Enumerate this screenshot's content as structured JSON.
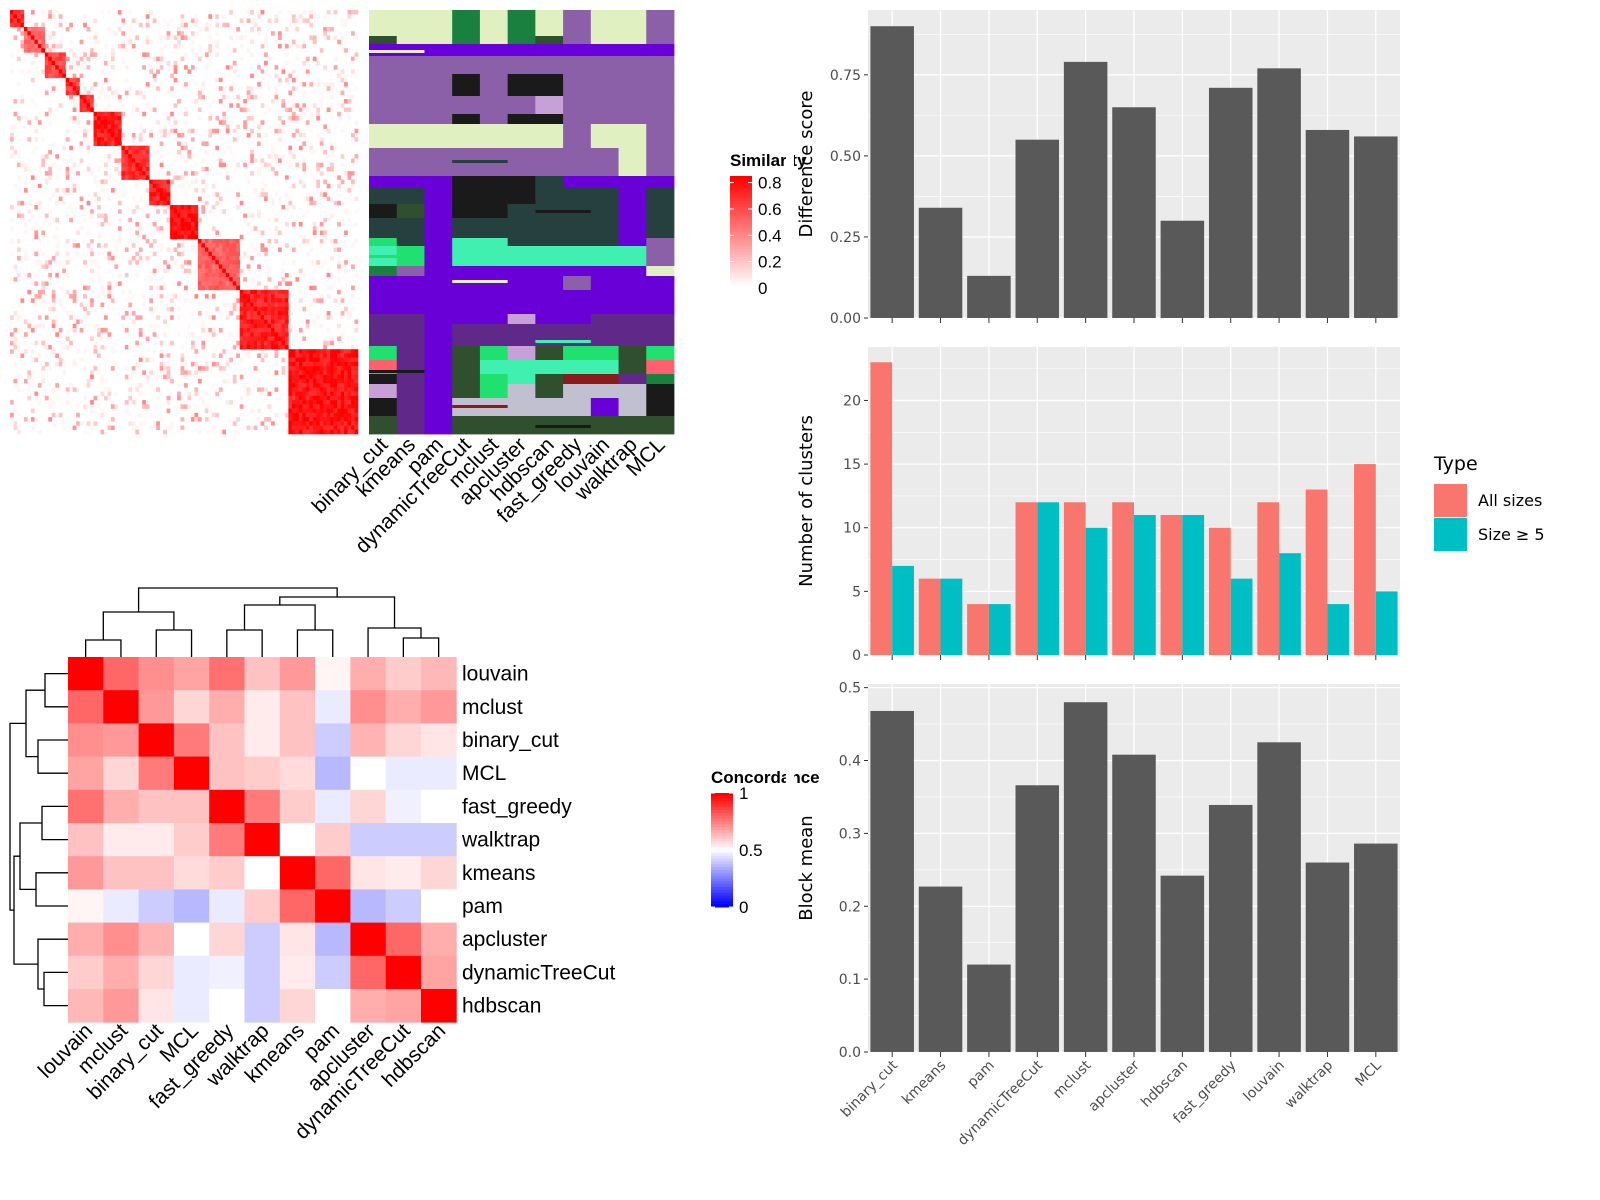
{
  "chart_data": [
    {
      "id": "similarity_heatmap",
      "type": "heatmap",
      "legend_title": "Similarity",
      "legend_ticks": [
        "0.8",
        "0.6",
        "0.4",
        "0.2",
        "0"
      ],
      "legend_tick_values": [
        0.8,
        0.6,
        0.4,
        0.2,
        0
      ],
      "n_items": 100,
      "blocks": [
        {
          "start": 0,
          "size": 4,
          "within": 0.8
        },
        {
          "start": 4,
          "size": 6,
          "within": 0.55
        },
        {
          "start": 10,
          "size": 6,
          "within": 0.7
        },
        {
          "start": 16,
          "size": 4,
          "within": 0.75
        },
        {
          "start": 20,
          "size": 4,
          "within": 0.8
        },
        {
          "start": 24,
          "size": 8,
          "within": 0.85
        },
        {
          "start": 32,
          "size": 8,
          "within": 0.8
        },
        {
          "start": 40,
          "size": 6,
          "within": 0.85
        },
        {
          "start": 46,
          "size": 8,
          "within": 0.9
        },
        {
          "start": 54,
          "size": 12,
          "within": 0.6
        },
        {
          "start": 66,
          "size": 14,
          "within": 0.85
        },
        {
          "start": 80,
          "size": 20,
          "within": 0.9
        }
      ],
      "colors": {
        "high": "#ff0000",
        "low": "#ffffff"
      }
    },
    {
      "id": "membership_annotation",
      "type": "heatmap",
      "columns": [
        "binary_cut",
        "kmeans",
        "pam",
        "dynamicTreeCut",
        "mclust",
        "apcluster",
        "hdbscan",
        "fast_greedy",
        "louvain",
        "walktrap",
        "MCL"
      ],
      "palette": [
        "#2f4f2f",
        "#e0f0c0",
        "#1a1a1a",
        "#8b60a8",
        "#6a00d8",
        "#264040",
        "#40f0b0",
        "#c0c0d0",
        "#602888",
        "#20e070",
        "#8b1a1a",
        "#ff6070",
        "#1a8040",
        "#c8a0d8"
      ]
    },
    {
      "id": "concordance_heatmap",
      "type": "heatmap",
      "legend_title": "Concordance",
      "legend_ticks": [
        "1",
        "0.5",
        "0"
      ],
      "legend_tick_values": [
        1,
        0.5,
        0
      ],
      "rows": [
        "louvain",
        "mclust",
        "binary_cut",
        "MCL",
        "fast_greedy",
        "walktrap",
        "kmeans",
        "pam",
        "apcluster",
        "dynamicTreeCut",
        "hdbscan"
      ],
      "columns": [
        "louvain",
        "mclust",
        "binary_cut",
        "MCL",
        "fast_greedy",
        "walktrap",
        "kmeans",
        "pam",
        "apcluster",
        "dynamicTreeCut",
        "hdbscan"
      ],
      "values": [
        [
          1.0,
          0.8,
          0.72,
          0.68,
          0.78,
          0.62,
          0.7,
          0.52,
          0.66,
          0.6,
          0.64
        ],
        [
          0.8,
          1.0,
          0.7,
          0.58,
          0.66,
          0.54,
          0.62,
          0.46,
          0.72,
          0.66,
          0.7
        ],
        [
          0.72,
          0.7,
          1.0,
          0.76,
          0.62,
          0.54,
          0.62,
          0.4,
          0.65,
          0.58,
          0.55
        ],
        [
          0.68,
          0.58,
          0.76,
          1.0,
          0.62,
          0.6,
          0.57,
          0.36,
          0.5,
          0.46,
          0.46
        ],
        [
          0.78,
          0.66,
          0.62,
          0.62,
          1.0,
          0.76,
          0.6,
          0.46,
          0.58,
          0.47,
          0.5
        ],
        [
          0.62,
          0.54,
          0.54,
          0.6,
          0.76,
          1.0,
          0.5,
          0.6,
          0.4,
          0.4,
          0.4
        ],
        [
          0.7,
          0.62,
          0.62,
          0.57,
          0.6,
          0.5,
          1.0,
          0.8,
          0.55,
          0.54,
          0.58
        ],
        [
          0.52,
          0.46,
          0.4,
          0.36,
          0.46,
          0.6,
          0.8,
          1.0,
          0.36,
          0.4,
          0.5
        ],
        [
          0.66,
          0.72,
          0.65,
          0.5,
          0.58,
          0.4,
          0.55,
          0.36,
          1.0,
          0.8,
          0.66
        ],
        [
          0.6,
          0.66,
          0.58,
          0.46,
          0.47,
          0.4,
          0.54,
          0.4,
          0.8,
          1.0,
          0.68
        ],
        [
          0.64,
          0.7,
          0.55,
          0.46,
          0.5,
          0.4,
          0.58,
          0.5,
          0.66,
          0.68,
          1.0
        ]
      ]
    },
    {
      "id": "difference_score",
      "type": "bar",
      "ylabel": "Difference score",
      "categories": [
        "binary_cut",
        "kmeans",
        "pam",
        "dynamicTreeCut",
        "mclust",
        "apcluster",
        "hdbscan",
        "fast_greedy",
        "louvain",
        "walktrap",
        "MCL"
      ],
      "values": [
        0.9,
        0.34,
        0.13,
        0.55,
        0.79,
        0.65,
        0.3,
        0.71,
        0.77,
        0.58,
        0.56
      ],
      "ylim": [
        0,
        0.95
      ],
      "yticks": [
        0,
        0.25,
        0.5,
        0.75
      ],
      "ytick_labels": [
        "0.00",
        "0.25",
        "0.50",
        "0.75"
      ],
      "grid": true,
      "show_x_labels": false
    },
    {
      "id": "number_of_clusters",
      "type": "bar",
      "ylabel": "Number of clusters",
      "categories": [
        "binary_cut",
        "kmeans",
        "pam",
        "dynamicTreeCut",
        "mclust",
        "apcluster",
        "hdbscan",
        "fast_greedy",
        "louvain",
        "walktrap",
        "MCL"
      ],
      "series": [
        {
          "name": "All sizes",
          "color": "#f8766d",
          "values": [
            23,
            6,
            4,
            12,
            12,
            12,
            11,
            10,
            12,
            13,
            15
          ]
        },
        {
          "name": "Size ≥ 5",
          "color": "#00bfc4",
          "values": [
            7,
            6,
            4,
            12,
            10,
            11,
            11,
            6,
            8,
            4,
            5
          ]
        }
      ],
      "ylim": [
        0,
        24.2
      ],
      "yticks": [
        0,
        5,
        10,
        15,
        20
      ],
      "ytick_labels": [
        "0",
        "5",
        "10",
        "15",
        "20"
      ],
      "grid": true,
      "legend_title": "Type",
      "legend_placement": "right",
      "show_x_labels": false
    },
    {
      "id": "block_mean",
      "type": "bar",
      "ylabel": "Block mean",
      "categories": [
        "binary_cut",
        "kmeans",
        "pam",
        "dynamicTreeCut",
        "mclust",
        "apcluster",
        "hdbscan",
        "fast_greedy",
        "louvain",
        "walktrap",
        "MCL"
      ],
      "values": [
        0.468,
        0.227,
        0.12,
        0.366,
        0.48,
        0.408,
        0.242,
        0.339,
        0.425,
        0.26,
        0.286
      ],
      "ylim": [
        0,
        0.505
      ],
      "yticks": [
        0,
        0.1,
        0.2,
        0.3,
        0.4,
        0.5
      ],
      "ytick_labels": [
        "0.0",
        "0.1",
        "0.2",
        "0.3",
        "0.4",
        "0.5"
      ],
      "grid": true,
      "show_x_labels": true
    }
  ]
}
